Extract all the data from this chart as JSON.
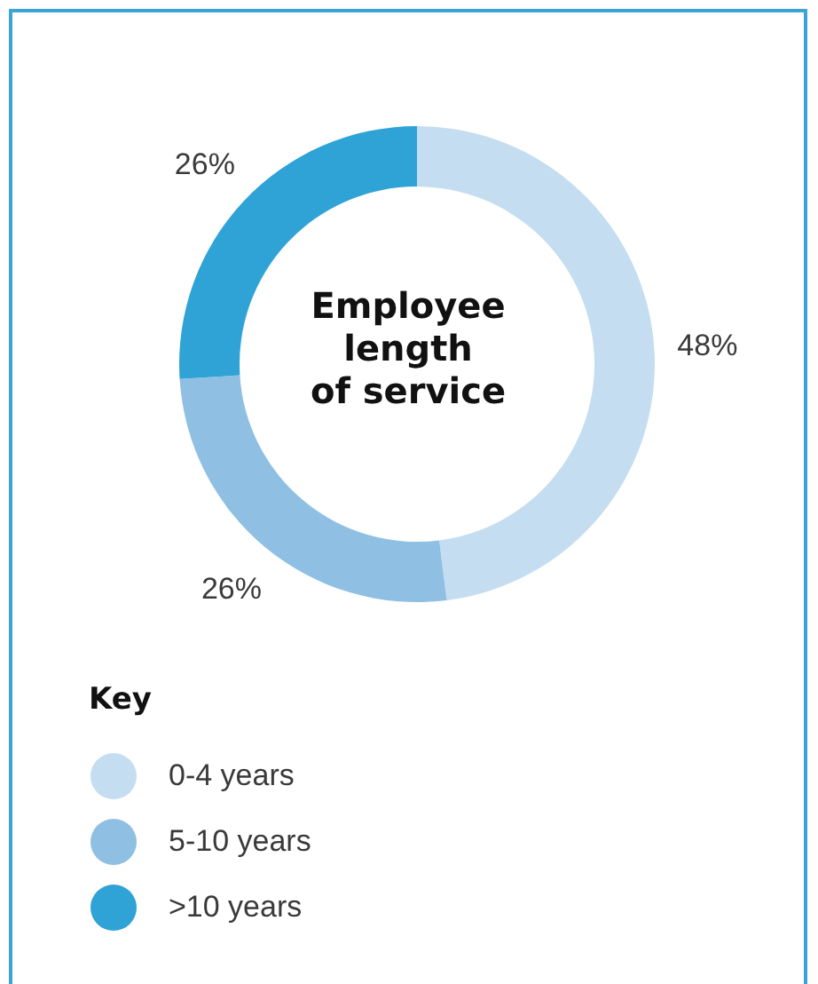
{
  "chart_data": {
    "type": "donut",
    "title": "Employee length of service",
    "legend_title": "Key",
    "legend": "bottom left",
    "categories": [
      "0-4 years",
      "5-10 years",
      ">10 years"
    ],
    "values": [
      48,
      26,
      26
    ],
    "value_labels": [
      "48%",
      "26%",
      "26%"
    ],
    "colors": [
      "#c5ddf0",
      "#8fc0e3",
      "#30a3d6"
    ]
  }
}
